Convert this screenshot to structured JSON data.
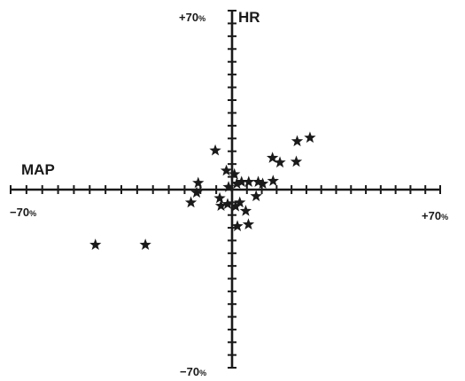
{
  "chart_data": {
    "type": "scatter",
    "marker": "star",
    "marker_color": "#1a1a1a",
    "axis_color": "#1a1a1a",
    "xlim": [
      -70,
      70
    ],
    "ylim": [
      -70,
      70
    ],
    "x_axis_name": "MAP",
    "y_axis_name": "HR",
    "ticks": {
      "x_min_num": "−70",
      "x_max_num": "+70",
      "y_min_num": "−70",
      "y_max_num": "+70",
      "unit": "%"
    },
    "points": [
      {
        "x": -43.2,
        "y": -21.7
      },
      {
        "x": -27.4,
        "y": -21.7
      },
      {
        "x": -5.3,
        "y": 15.3
      },
      {
        "x": -10.7,
        "y": 2.6
      },
      {
        "x": -11.2,
        "y": -1.2
      },
      {
        "x": -13.0,
        "y": -5.1
      },
      {
        "x": -3.9,
        "y": -3.4
      },
      {
        "x": -1.8,
        "y": 7.4
      },
      {
        "x": -1.1,
        "y": 1.0
      },
      {
        "x": 0.8,
        "y": 6.0
      },
      {
        "x": 1.6,
        "y": 2.3
      },
      {
        "x": 3.2,
        "y": 3.0
      },
      {
        "x": 5.6,
        "y": 3.0
      },
      {
        "x": 8.8,
        "y": 3.0
      },
      {
        "x": 10.3,
        "y": 2.3
      },
      {
        "x": 8.1,
        "y": -2.6
      },
      {
        "x": 1.2,
        "y": -6.6
      },
      {
        "x": 2.6,
        "y": -5.1
      },
      {
        "x": -1.4,
        "y": -5.7
      },
      {
        "x": -3.5,
        "y": -6.4
      },
      {
        "x": 4.6,
        "y": -8.4
      },
      {
        "x": 1.8,
        "y": -14.4
      },
      {
        "x": 5.5,
        "y": -13.7
      },
      {
        "x": 13.6,
        "y": 12.4
      },
      {
        "x": 16.1,
        "y": 10.6
      },
      {
        "x": 13.8,
        "y": 3.4
      },
      {
        "x": 21.9,
        "y": 18.9
      },
      {
        "x": 26.2,
        "y": 20.3
      },
      {
        "x": 21.6,
        "y": 10.9
      }
    ]
  }
}
